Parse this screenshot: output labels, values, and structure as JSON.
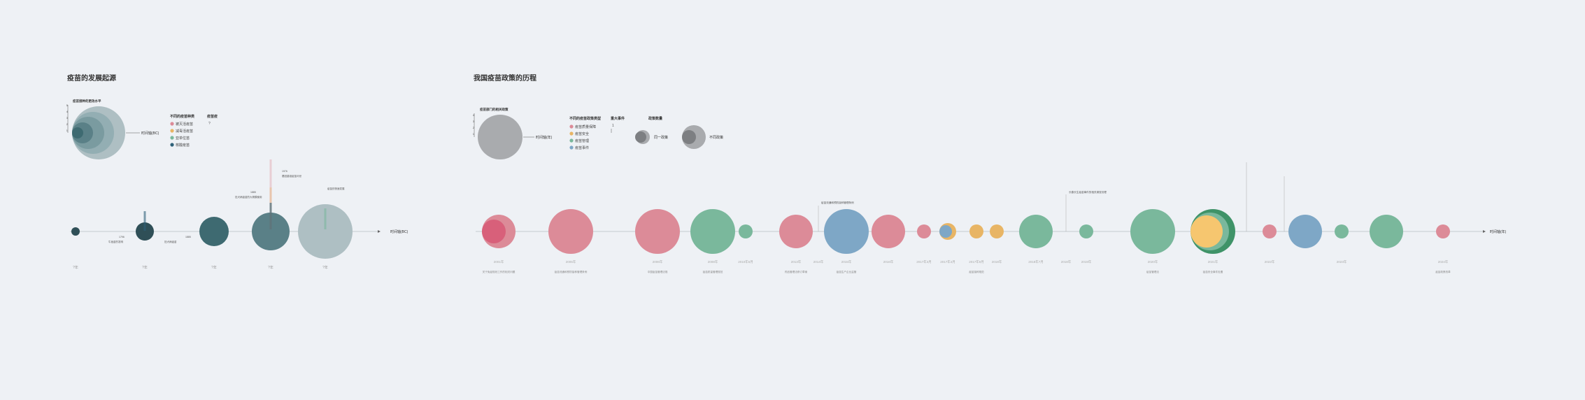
{
  "left": {
    "title": "疫苗的发展起源",
    "size_legend_title": "疫苗接种的更改水平",
    "size_legend_ticks": [
      "5",
      "4",
      "3",
      "2",
      "1"
    ],
    "axis_label": "时间轴(BC)",
    "type_legend_title": "不同的疫苗种类",
    "types": [
      {
        "label": "被灭活疫苗",
        "color": "#dc8b98"
      },
      {
        "label": "减毒活疫苗",
        "color": "#e8b565"
      },
      {
        "label": "亚单位苗",
        "color": "#7ab89c"
      },
      {
        "label": "核酸疫苗",
        "color": "#2f6179"
      }
    ],
    "unknown_title": "疫苗疫",
    "unknown_value": "?",
    "timeline_label": "时间轴(BC)",
    "year_labels": [
      "?年",
      "?年",
      "?年",
      "?年",
      "?年"
    ],
    "annotations": [
      "1796",
      "牛痘苗的发明",
      "1885",
      "狂犬病疫苗",
      "1885",
      "狂犬病疫苗的大规模使用",
      "1976",
      "基因重组疫苗问世",
      "疫苗的快速发展"
    ]
  },
  "right": {
    "title": "我国疫苗政策的历程",
    "size_legend_title": "疫苗部门的相关政策",
    "size_legend_ticks": [
      "4",
      "3",
      "2",
      "1"
    ],
    "axis_label": "时间轴(年)",
    "type_legend_title": "不同的疫苗政策类型",
    "types": [
      {
        "label": "疫苗质量保障",
        "color": "#dc8b98"
      },
      {
        "label": "疫苗安全",
        "color": "#e8b565"
      },
      {
        "label": "疫苗管理",
        "color": "#7ab89c"
      },
      {
        "label": "疫苗事件",
        "color": "#7ea7c6"
      }
    ],
    "event_legend_title": "重大事件",
    "event_legend_value": "1",
    "count_legend_title": "政策数量",
    "count_single": "同一政策",
    "count_multi": "不同政策",
    "timeline_label": "时间轴(年)",
    "dates": [
      "2001年",
      "2005年",
      "2006年",
      "2008年",
      "2010年6月",
      "2013年",
      "2014年",
      "2015年",
      "2016年",
      "2017年3月",
      "2017年4月",
      "2017年9月",
      "2018年",
      "2018年7月",
      "2018年",
      "2019年",
      "2020年",
      "2021年",
      "2022年",
      "2023年",
      "2024年"
    ],
    "notes": [
      "关于免疫规划工作的相关问题",
      "疫苗流通和预防接种管理条例",
      "中国疫苗管理法规",
      "疫苗质量管理规范",
      "药品管理法修订草案",
      "疫苗生产企业监管",
      "疫苗接种规范",
      "疫苗管理法",
      "疫苗安全事件处置",
      "疫苗政策改革"
    ],
    "text_blocks": [
      "疫苗流通和预防接种管理条例",
      "长春长生疫苗事件的相关调查处理"
    ]
  }
}
